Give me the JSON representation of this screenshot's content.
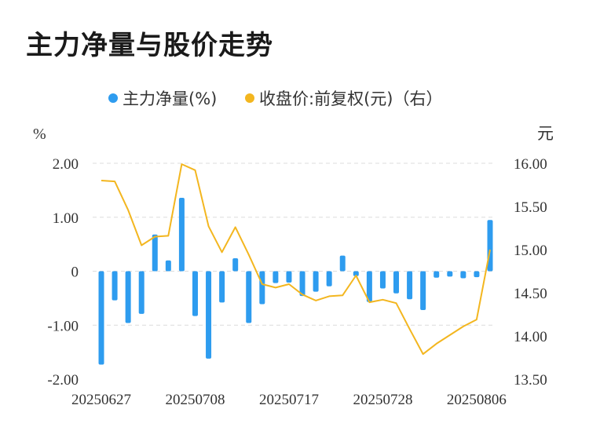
{
  "title": "主力净量与股价走势",
  "legend": [
    {
      "label": "主力净量(%)",
      "color": "#2e9cef"
    },
    {
      "label": "收盘价:前复权(元)（右）",
      "color": "#f3b61f"
    }
  ],
  "axes": {
    "left_unit": "%",
    "right_unit": "元",
    "left_ticks": [
      "2.00",
      "1.00",
      "0",
      "-1.00",
      "-2.00"
    ],
    "right_ticks": [
      "16.00",
      "15.50",
      "15.00",
      "14.50",
      "14.00",
      "13.50"
    ],
    "x_ticks": [
      "20250627",
      "20250708",
      "20250717",
      "20250728",
      "20250806"
    ]
  },
  "chart_data": {
    "type": "bar",
    "title": "主力净量与股价走势",
    "grid": true,
    "legend_position": "top",
    "left_axis_range": [
      -2.0,
      2.0
    ],
    "right_axis_range": [
      13.5,
      16.0
    ],
    "categories": [
      "20250627",
      "20250630",
      "20250701",
      "20250702",
      "20250703",
      "20250704",
      "20250707",
      "20250708",
      "20250709",
      "20250710",
      "20250711",
      "20250714",
      "20250715",
      "20250716",
      "20250717",
      "20250718",
      "20250721",
      "20250722",
      "20250723",
      "20250724",
      "20250725",
      "20250728",
      "20250729",
      "20250730",
      "20250731",
      "20250801",
      "20250804",
      "20250805",
      "20250806",
      "20250807"
    ],
    "series": [
      {
        "name": "主力净量(%)",
        "type": "bar",
        "axis": "left",
        "values": [
          -1.73,
          -0.54,
          -0.96,
          -0.79,
          0.68,
          0.2,
          1.36,
          -0.83,
          -1.62,
          -0.58,
          0.24,
          -0.96,
          -0.61,
          -0.22,
          -0.21,
          -0.46,
          -0.38,
          -0.28,
          0.29,
          -0.09,
          -0.57,
          -0.32,
          -0.41,
          -0.52,
          -0.72,
          -0.12,
          -0.1,
          -0.13,
          -0.11,
          0.95
        ]
      },
      {
        "name": "收盘价:前复权(元)（右）",
        "type": "line",
        "axis": "right",
        "values": [
          15.8,
          15.79,
          15.46,
          15.05,
          15.15,
          15.16,
          15.99,
          15.92,
          15.27,
          14.97,
          15.26,
          14.94,
          14.6,
          14.56,
          14.6,
          14.48,
          14.41,
          14.46,
          14.47,
          14.7,
          14.39,
          14.42,
          14.38,
          14.08,
          13.79,
          13.91,
          14.01,
          14.11,
          14.19,
          15.0
        ]
      }
    ]
  }
}
